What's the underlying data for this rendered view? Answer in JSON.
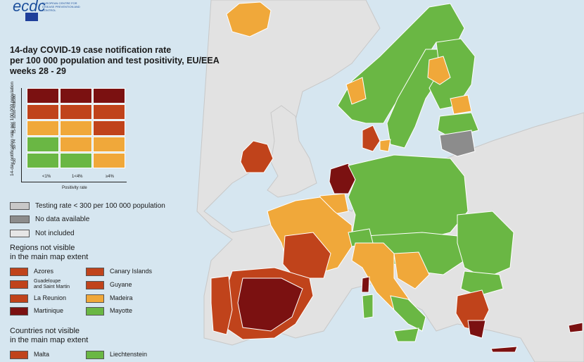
{
  "logo": {
    "text": "ecdc",
    "subtitle": "EUROPEAN CENTRE FOR DISEASE PREVENTION AND CONTROL"
  },
  "title": {
    "line1": "14-day COVID-19 case notification rate",
    "line2": "per 100 000 population and test positivity, EU/EEA",
    "line3": "weeks 28 - 29"
  },
  "colors": {
    "dark_red": "#7b1111",
    "red": "#c0431b",
    "orange": "#f0a83a",
    "green": "#6ab744",
    "light_grey": "#c8c8c8",
    "dark_grey": "#8c8c8c",
    "not_included": "#e6e6e6",
    "sea": "#d6e6f0"
  },
  "matrix": {
    "y_title": "14-day notification rate per 100 000 population",
    "x_title": "Positivity rate",
    "y_labels": [
      "≥500",
      "≥200-499",
      "75-200",
      "50-74",
      "<50"
    ],
    "x_labels": [
      "<1%",
      "1<4%",
      "≥4%"
    ],
    "cells": [
      [
        "dark_red",
        "dark_red",
        "dark_red"
      ],
      [
        "red",
        "red",
        "red"
      ],
      [
        "orange",
        "orange",
        "red"
      ],
      [
        "green",
        "orange",
        "orange"
      ],
      [
        "green",
        "green",
        "orange"
      ]
    ]
  },
  "legend": {
    "testing_rate": "Testing rate < 300 per 100 000 population",
    "no_data": "No data available",
    "not_included": "Not included"
  },
  "regions": {
    "title_line1": "Regions not visible",
    "title_line2": "in the main map extent",
    "items": [
      {
        "label": "Azores",
        "color": "red"
      },
      {
        "label": "Canary Islands",
        "color": "red"
      },
      {
        "label_line1": "Guadeloupe",
        "label_line2": "and Saint Martin",
        "color": "red"
      },
      {
        "label": "Guyane",
        "color": "red"
      },
      {
        "label": "La Reunion",
        "color": "red"
      },
      {
        "label": "Madeira",
        "color": "orange"
      },
      {
        "label": "Martinique",
        "color": "dark_red"
      },
      {
        "label": "Mayotte",
        "color": "green"
      }
    ]
  },
  "countries": {
    "title_line1": "Countries not visible",
    "title_line2": "in the main map extent",
    "items": [
      {
        "label": "Malta",
        "color": "red"
      },
      {
        "label": "Liechtenstein",
        "color": "green"
      }
    ]
  }
}
